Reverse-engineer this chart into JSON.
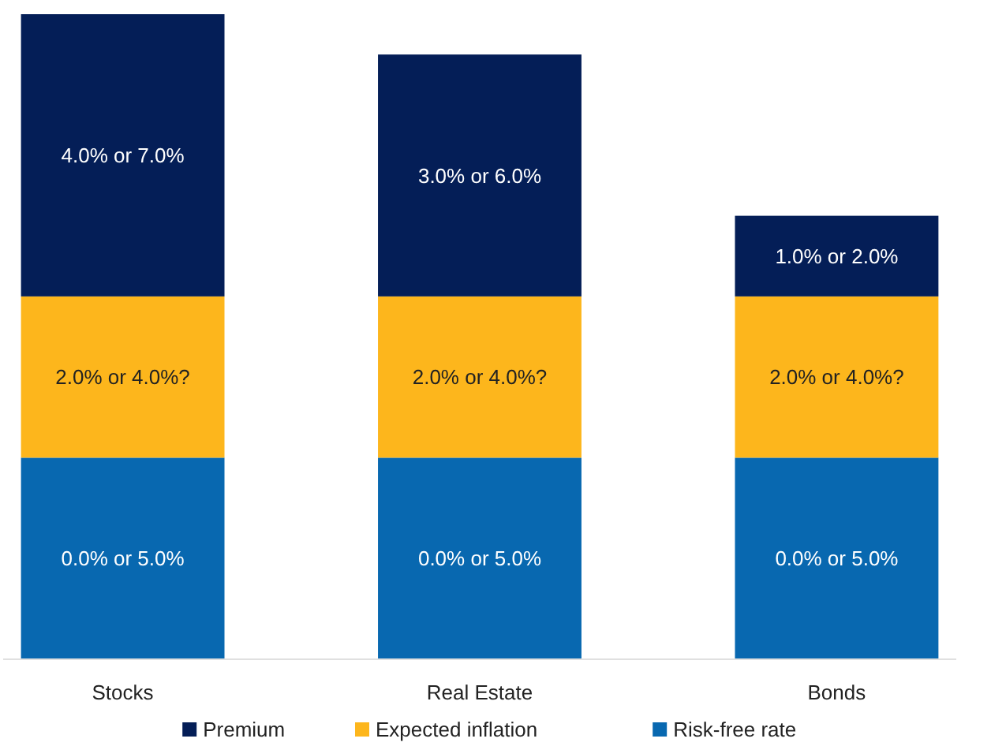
{
  "chart_data": {
    "type": "bar",
    "stacked": true,
    "categories": [
      "Stocks",
      "Real Estate",
      "Bonds"
    ],
    "legend": "bottom",
    "series": [
      {
        "name": "Risk-free rate",
        "color": "#0868b0",
        "values": [
          5,
          5,
          5
        ],
        "value_labels": [
          "0.0% or 5.0%",
          "0.0% or 5.0%",
          "0.0% or 5.0%"
        ]
      },
      {
        "name": "Expected inflation",
        "color": "#fdb61c",
        "values": [
          4,
          4,
          4
        ],
        "value_labels": [
          "2.0% or 4.0%?",
          "2.0% or 4.0%?",
          "2.0% or 4.0%?"
        ]
      },
      {
        "name": "Premium",
        "color": "#041e57",
        "values": [
          7,
          6,
          2
        ],
        "value_labels": [
          "4.0% or 7.0%",
          "3.0% or 6.0%",
          "1.0% or 2.0%"
        ]
      }
    ]
  }
}
